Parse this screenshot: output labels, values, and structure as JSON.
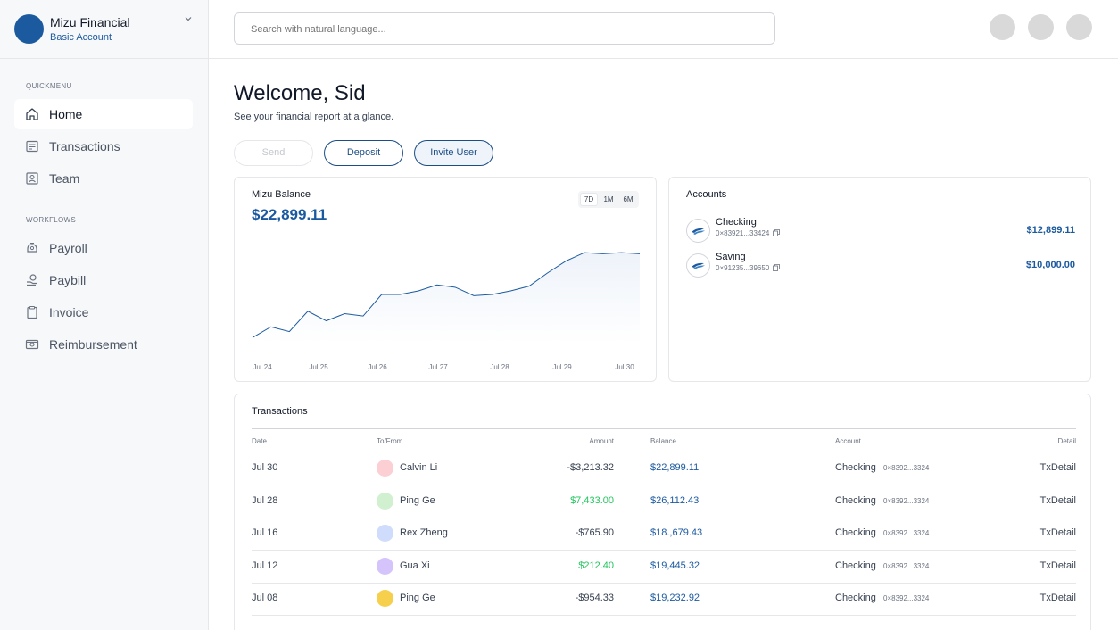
{
  "org": {
    "name": "Mizu Financial",
    "plan": "Basic Account"
  },
  "search": {
    "placeholder": "Search with natural language..."
  },
  "sidebar": {
    "quickmenu_label": "QUICKMENU",
    "workflows_label": "WORKFLOWS",
    "quickmenu": [
      {
        "label": "Home",
        "icon": "home-icon",
        "active": true
      },
      {
        "label": "Transactions",
        "icon": "transactions-icon"
      },
      {
        "label": "Team",
        "icon": "team-icon"
      }
    ],
    "workflows": [
      {
        "label": "Payroll",
        "icon": "payroll-icon"
      },
      {
        "label": "Paybill",
        "icon": "paybill-icon"
      },
      {
        "label": "Invoice",
        "icon": "invoice-icon"
      },
      {
        "label": "Reimbursement",
        "icon": "reimbursement-icon"
      }
    ]
  },
  "header": {
    "welcome": "Welcome, Sid",
    "subtitle": "See your financial report at a glance."
  },
  "actions": {
    "send": "Send",
    "deposit": "Deposit",
    "invite": "Invite User"
  },
  "balance": {
    "title": "Mizu Balance",
    "value": "$22,899.11",
    "ranges": [
      "7D",
      "1M",
      "6M"
    ],
    "active_range": "7D"
  },
  "chart_data": {
    "type": "area",
    "title": "",
    "xlabel": "",
    "ylabel": "",
    "x_ticks": [
      "Jul 24",
      "Jul 25",
      "Jul 26",
      "Jul 27",
      "Jul 28",
      "Jul 29",
      "Jul 30"
    ],
    "values": [
      18.0,
      18.9,
      18.5,
      20.2,
      19.4,
      20.0,
      19.8,
      21.6,
      21.6,
      21.9,
      22.4,
      22.2,
      21.5,
      21.6,
      21.9,
      22.3,
      23.4,
      24.4,
      25.1,
      25.0,
      25.1,
      25.0
    ],
    "fill_color": "#eef3fa",
    "line_color": "#1c5aa0",
    "grid": false
  },
  "accounts": {
    "title": "Accounts",
    "items": [
      {
        "name": "Checking",
        "number": "0×83921...33424",
        "amount": "$12,899.11"
      },
      {
        "name": "Saving",
        "number": "0×91235...39650",
        "amount": "$10,000.00"
      }
    ]
  },
  "transactions": {
    "title": "Transactions",
    "columns": {
      "date": "Date",
      "tofrom": "To/From",
      "amount": "Amount",
      "balance": "Balance",
      "account": "Account",
      "detail": "Detail"
    },
    "rows": [
      {
        "date": "Jul 30",
        "name": "Calvin Li",
        "avatar_color": "#fbcfd3",
        "amount": "-$3,213.32",
        "positive": false,
        "balance": "$22,899.11",
        "account": "Checking",
        "acct_num": "0×8392...3324",
        "detail": "TxDetail"
      },
      {
        "date": "Jul 28",
        "name": "Ping Ge",
        "avatar_color": "#d1f0cf",
        "amount": "$7,433.00",
        "positive": true,
        "balance": "$26,112.43",
        "account": "Checking",
        "acct_num": "0×8392...3324",
        "detail": "TxDetail"
      },
      {
        "date": "Jul 16",
        "name": "Rex Zheng",
        "avatar_color": "#cfdcfb",
        "amount": "-$765.90",
        "positive": false,
        "balance": "$18.,679.43",
        "account": "Checking",
        "acct_num": "0×8392...3324",
        "detail": "TxDetail"
      },
      {
        "date": "Jul 12",
        "name": "Gua Xi",
        "avatar_color": "#d4c4fb",
        "amount": "$212.40",
        "positive": true,
        "balance": "$19,445.32",
        "account": "Checking",
        "acct_num": "0×8392...3324",
        "detail": "TxDetail"
      },
      {
        "date": "Jul 08",
        "name": "Ping Ge",
        "avatar_color": "#f6d04d",
        "amount": "-$954.33",
        "positive": false,
        "balance": "$19,232.92",
        "account": "Checking",
        "acct_num": "0×8392...3324",
        "detail": "TxDetail"
      }
    ]
  }
}
